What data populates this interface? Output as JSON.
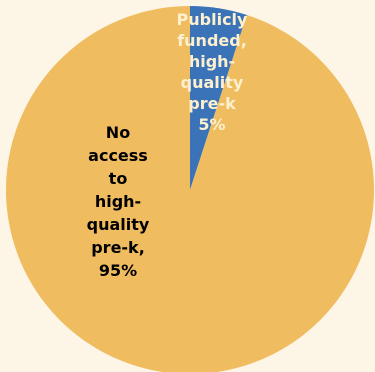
{
  "chart_data": {
    "type": "pie",
    "title": "",
    "slices": [
      {
        "label": "Publicly funded, high-quality pre-k",
        "label_lines": [
          "Publicly",
          "funded,",
          "high-",
          "quality",
          "pre-k",
          "5%"
        ],
        "value": 5,
        "color": "#3a73b8",
        "label_color": "#fdf0cf"
      },
      {
        "label": "No access to high-quality pre-k",
        "label_lines": [
          "No",
          "access",
          "to",
          "high-",
          "quality",
          "pre-k,",
          "95%"
        ],
        "value": 95,
        "color": "#f0bc60",
        "label_color": "#000000"
      }
    ],
    "start_angle_deg": 0,
    "direction": "clockwise",
    "legend": "none"
  }
}
